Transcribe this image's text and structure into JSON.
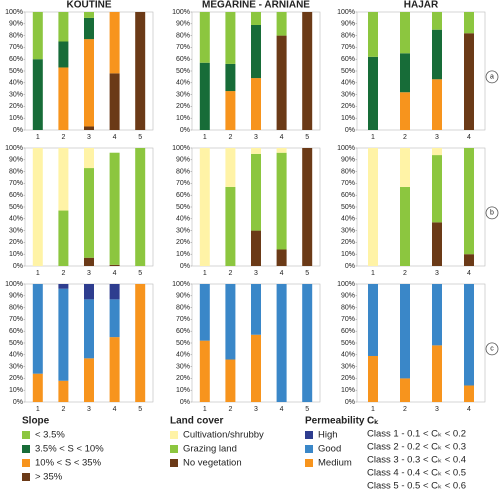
{
  "titles": [
    "KOUTINE",
    "MEGARINE - ARNIANE",
    "HAJAR"
  ],
  "row_labels": [
    "a",
    "b",
    "c"
  ],
  "legend_titles": [
    "Slope",
    "Land cover",
    "Permeability"
  ],
  "ck": {
    "title": "Cₖ",
    "classes": [
      "Class 1 - 0.1 < Cₖ < 0.2",
      "Class 2 - 0.2 < Cₖ < 0.3",
      "Class 3 - 0.3 < Cₖ < 0.4",
      "Class 4 - 0.4 < Cₖ < 0.5",
      "Class 5 - 0.5 < Cₖ < 0.6"
    ]
  },
  "chart_data": [
    {
      "type": "bar",
      "stacked": true,
      "categories": [
        "1",
        "2",
        "3",
        "4",
        "5"
      ],
      "ylim": [
        0,
        100
      ],
      "yticks": [
        {
          "value": 0,
          "label": "0%"
        },
        {
          "value": 10,
          "label": "10%"
        },
        {
          "value": 20,
          "label": "20%"
        },
        {
          "value": 30,
          "label": "30%"
        },
        {
          "value": 40,
          "label": "40%"
        },
        {
          "value": 50,
          "label": "50%"
        },
        {
          "value": 60,
          "label": "60%"
        },
        {
          "value": 70,
          "label": "70%"
        },
        {
          "value": 80,
          "label": "80%"
        },
        {
          "value": 90,
          "label": "90%"
        },
        {
          "value": 100,
          "label": "100%"
        }
      ],
      "series": [
        {
          "name": "< 3.5%",
          "color": "#8cc63f",
          "values": [
            40,
            25,
            5,
            0,
            0
          ]
        },
        {
          "name": "3.5% < S < 10%",
          "color": "#176c38",
          "values": [
            60,
            22,
            18,
            0,
            0
          ]
        },
        {
          "name": "10% < S < 35%",
          "color": "#f7941d",
          "values": [
            0,
            53,
            74,
            52,
            0
          ]
        },
        {
          "name": "> 35%",
          "color": "#6b3a17",
          "values": [
            0,
            0,
            3,
            48,
            100
          ]
        }
      ]
    },
    {
      "type": "bar",
      "stacked": true,
      "categories": [
        "1",
        "2",
        "3",
        "4",
        "5"
      ],
      "ylim": [
        0,
        100
      ],
      "yticks": [
        {
          "value": 0,
          "label": "0%"
        },
        {
          "value": 10,
          "label": "10%"
        },
        {
          "value": 20,
          "label": "20%"
        },
        {
          "value": 30,
          "label": "30%"
        },
        {
          "value": 40,
          "label": "40%"
        },
        {
          "value": 50,
          "label": "50%"
        },
        {
          "value": 60,
          "label": "60%"
        },
        {
          "value": 70,
          "label": "70%"
        },
        {
          "value": 80,
          "label": "80%"
        },
        {
          "value": 90,
          "label": "90%"
        },
        {
          "value": 100,
          "label": "100%"
        }
      ],
      "series": [
        {
          "name": "< 3.5%",
          "color": "#8cc63f",
          "values": [
            43,
            44,
            11,
            20,
            0
          ]
        },
        {
          "name": "3.5% < S < 10%",
          "color": "#176c38",
          "values": [
            57,
            23,
            45,
            0,
            0
          ]
        },
        {
          "name": "10% < S < 35%",
          "color": "#f7941d",
          "values": [
            0,
            33,
            44,
            0,
            0
          ]
        },
        {
          "name": "> 35%",
          "color": "#6b3a17",
          "values": [
            0,
            0,
            0,
            80,
            100
          ]
        }
      ]
    },
    {
      "type": "bar",
      "stacked": true,
      "categories": [
        "1",
        "2",
        "3",
        "4"
      ],
      "ylim": [
        0,
        100
      ],
      "yticks": [
        {
          "value": 0,
          "label": "0%"
        },
        {
          "value": 10,
          "label": "10%"
        },
        {
          "value": 20,
          "label": "20%"
        },
        {
          "value": 30,
          "label": "30%"
        },
        {
          "value": 40,
          "label": "40%"
        },
        {
          "value": 50,
          "label": "50%"
        },
        {
          "value": 60,
          "label": "60%"
        },
        {
          "value": 70,
          "label": "70%"
        },
        {
          "value": 80,
          "label": "80%"
        },
        {
          "value": 90,
          "label": "90%"
        },
        {
          "value": 100,
          "label": "100%"
        }
      ],
      "series": [
        {
          "name": "< 3.5%",
          "color": "#8cc63f",
          "values": [
            38,
            35,
            15,
            18
          ]
        },
        {
          "name": "3.5% < S < 10%",
          "color": "#176c38",
          "values": [
            62,
            33,
            42,
            0
          ]
        },
        {
          "name": "10% < S < 35%",
          "color": "#f7941d",
          "values": [
            0,
            32,
            43,
            0
          ]
        },
        {
          "name": "> 35%",
          "color": "#6b3a17",
          "values": [
            0,
            0,
            0,
            82
          ]
        }
      ]
    },
    {
      "type": "bar",
      "stacked": true,
      "categories": [
        "1",
        "2",
        "3",
        "4",
        "5"
      ],
      "ylim": [
        0,
        100
      ],
      "yticks": [
        {
          "value": 0,
          "label": "0%"
        },
        {
          "value": 10,
          "label": "10%"
        },
        {
          "value": 20,
          "label": "20%"
        },
        {
          "value": 30,
          "label": "30%"
        },
        {
          "value": 40,
          "label": "40%"
        },
        {
          "value": 50,
          "label": "50%"
        },
        {
          "value": 60,
          "label": "60%"
        },
        {
          "value": 70,
          "label": "70%"
        },
        {
          "value": 80,
          "label": "80%"
        },
        {
          "value": 90,
          "label": "90%"
        },
        {
          "value": 100,
          "label": "100%"
        }
      ],
      "series": [
        {
          "name": "Cultivation/shrubby",
          "color": "#fff3a6",
          "values": [
            100,
            53,
            17,
            0,
            0
          ]
        },
        {
          "name": "Grazing land",
          "color": "#8cc63f",
          "values": [
            0,
            47,
            76,
            95,
            100
          ]
        },
        {
          "name": "No vegetation",
          "color": "#6b3a17",
          "values": [
            0,
            0,
            7,
            1,
            0
          ]
        }
      ]
    },
    {
      "type": "bar",
      "stacked": true,
      "categories": [
        "1",
        "2",
        "3",
        "4",
        "5"
      ],
      "ylim": [
        0,
        100
      ],
      "yticks": [
        {
          "value": 0,
          "label": "0%"
        },
        {
          "value": 10,
          "label": "10%"
        },
        {
          "value": 20,
          "label": "20%"
        },
        {
          "value": 30,
          "label": "30%"
        },
        {
          "value": 40,
          "label": "40%"
        },
        {
          "value": 50,
          "label": "50%"
        },
        {
          "value": 60,
          "label": "60%"
        },
        {
          "value": 70,
          "label": "70%"
        },
        {
          "value": 80,
          "label": "80%"
        },
        {
          "value": 90,
          "label": "90%"
        },
        {
          "value": 100,
          "label": "100%"
        }
      ],
      "series": [
        {
          "name": "Cultivation/shrubby",
          "color": "#fff3a6",
          "values": [
            100,
            33,
            5,
            4,
            0
          ]
        },
        {
          "name": "Grazing land",
          "color": "#8cc63f",
          "values": [
            0,
            67,
            65,
            82,
            0
          ]
        },
        {
          "name": "No vegetation",
          "color": "#6b3a17",
          "values": [
            0,
            0,
            30,
            14,
            100
          ]
        }
      ]
    },
    {
      "type": "bar",
      "stacked": true,
      "categories": [
        "1",
        "2",
        "3",
        "4"
      ],
      "ylim": [
        0,
        100
      ],
      "yticks": [
        {
          "value": 0,
          "label": "0%"
        },
        {
          "value": 10,
          "label": "10%"
        },
        {
          "value": 20,
          "label": "20%"
        },
        {
          "value": 30,
          "label": "30%"
        },
        {
          "value": 40,
          "label": "40%"
        },
        {
          "value": 50,
          "label": "50%"
        },
        {
          "value": 60,
          "label": "60%"
        },
        {
          "value": 70,
          "label": "70%"
        },
        {
          "value": 80,
          "label": "80%"
        },
        {
          "value": 90,
          "label": "90%"
        },
        {
          "value": 100,
          "label": "100%"
        }
      ],
      "series": [
        {
          "name": "Cultivation/shrubby",
          "color": "#fff3a6",
          "values": [
            100,
            33,
            6,
            0
          ]
        },
        {
          "name": "Grazing land",
          "color": "#8cc63f",
          "values": [
            0,
            67,
            57,
            90
          ]
        },
        {
          "name": "No vegetation",
          "color": "#6b3a17",
          "values": [
            0,
            0,
            37,
            10
          ]
        }
      ]
    },
    {
      "type": "bar",
      "stacked": true,
      "categories": [
        "1",
        "2",
        "3",
        "4",
        "5"
      ],
      "ylim": [
        0,
        100
      ],
      "yticks": [
        {
          "value": 0,
          "label": "0%"
        },
        {
          "value": 10,
          "label": "10%"
        },
        {
          "value": 20,
          "label": "20%"
        },
        {
          "value": 30,
          "label": "30%"
        },
        {
          "value": 40,
          "label": "40%"
        },
        {
          "value": 50,
          "label": "50%"
        },
        {
          "value": 60,
          "label": "60%"
        },
        {
          "value": 70,
          "label": "70%"
        },
        {
          "value": 80,
          "label": "80%"
        },
        {
          "value": 90,
          "label": "90%"
        },
        {
          "value": 100,
          "label": "100%"
        }
      ],
      "series": [
        {
          "name": "High",
          "color": "#2e3d8f",
          "values": [
            0,
            4,
            13,
            13,
            0
          ]
        },
        {
          "name": "Good",
          "color": "#3a87c8",
          "values": [
            76,
            78,
            50,
            32,
            0
          ]
        },
        {
          "name": "Medium",
          "color": "#f7941d",
          "values": [
            24,
            18,
            37,
            55,
            100
          ]
        }
      ]
    },
    {
      "type": "bar",
      "stacked": true,
      "categories": [
        "1",
        "2",
        "3",
        "4",
        "5"
      ],
      "ylim": [
        0,
        100
      ],
      "yticks": [
        {
          "value": 0,
          "label": "0%"
        },
        {
          "value": 10,
          "label": "10%"
        },
        {
          "value": 20,
          "label": "20%"
        },
        {
          "value": 30,
          "label": "30%"
        },
        {
          "value": 40,
          "label": "40%"
        },
        {
          "value": 50,
          "label": "50%"
        },
        {
          "value": 60,
          "label": "60%"
        },
        {
          "value": 70,
          "label": "70%"
        },
        {
          "value": 80,
          "label": "80%"
        },
        {
          "value": 90,
          "label": "90%"
        },
        {
          "value": 100,
          "label": "100%"
        }
      ],
      "series": [
        {
          "name": "High",
          "color": "#2e3d8f",
          "values": [
            0,
            0,
            0,
            0,
            0
          ]
        },
        {
          "name": "Good",
          "color": "#3a87c8",
          "values": [
            48,
            64,
            43,
            100,
            100
          ]
        },
        {
          "name": "Medium",
          "color": "#f7941d",
          "values": [
            52,
            36,
            57,
            0,
            0
          ]
        }
      ]
    },
    {
      "type": "bar",
      "stacked": true,
      "categories": [
        "1",
        "2",
        "3",
        "4"
      ],
      "ylim": [
        0,
        100
      ],
      "yticks": [
        {
          "value": 0,
          "label": "0%"
        },
        {
          "value": 10,
          "label": "10%"
        },
        {
          "value": 20,
          "label": "20%"
        },
        {
          "value": 30,
          "label": "30%"
        },
        {
          "value": 40,
          "label": "40%"
        },
        {
          "value": 50,
          "label": "50%"
        },
        {
          "value": 60,
          "label": "60%"
        },
        {
          "value": 70,
          "label": "70%"
        },
        {
          "value": 80,
          "label": "80%"
        },
        {
          "value": 90,
          "label": "90%"
        },
        {
          "value": 100,
          "label": "100%"
        }
      ],
      "series": [
        {
          "name": "High",
          "color": "#2e3d8f",
          "values": [
            0,
            0,
            0,
            0
          ]
        },
        {
          "name": "Good",
          "color": "#3a87c8",
          "values": [
            61,
            80,
            52,
            86
          ]
        },
        {
          "name": "Medium",
          "color": "#f7941d",
          "values": [
            39,
            20,
            48,
            14
          ]
        }
      ]
    }
  ]
}
